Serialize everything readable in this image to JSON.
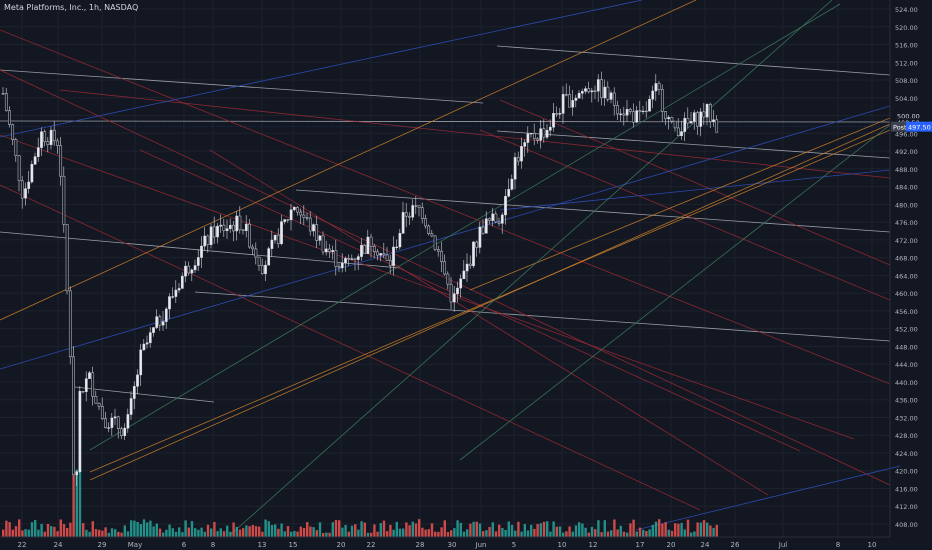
{
  "header": {
    "title": "Meta Platforms, Inc., 1h, NASDAQ"
  },
  "colors": {
    "background": "#131722",
    "up": "#26a69a",
    "down": "#ef5350",
    "wick": "#d1d4dc",
    "axis_text": "#b2b5be",
    "grid": "#1e222d",
    "trendline_white": "#b2b5be",
    "trendline_red": "#9c2a35",
    "trendline_blue": "#2f52c4",
    "trendline_orange": "#d0832a",
    "trendline_green": "#3f7d5e"
  },
  "chart_data": {
    "type": "candlestick",
    "title": "Meta Platforms, Inc., 1h, NASDAQ",
    "ylim": [
      405,
      526
    ],
    "y_ticks": [
      524,
      520,
      516,
      512,
      508,
      504,
      500,
      496,
      492,
      488,
      484,
      480,
      476,
      472,
      468,
      464,
      460,
      456,
      452,
      448,
      444,
      440,
      436,
      432,
      428,
      424,
      420,
      416,
      412,
      408
    ],
    "x_ticks": [
      "22",
      "24",
      "29",
      "May",
      "6",
      "8",
      "13",
      "15",
      "20",
      "22",
      "28",
      "30",
      "Jun",
      "5",
      "10",
      "12",
      "17",
      "20",
      "24",
      "26",
      "Jul",
      "8",
      "10"
    ],
    "current_price": {
      "label": "Post",
      "value": "497.50"
    },
    "price_marks": [
      500.0,
      498.5,
      497.5
    ],
    "keypoints": [
      {
        "x": "Apr 19",
        "y": 505
      },
      {
        "x": "Apr 22",
        "y": 482
      },
      {
        "x": "Apr 23",
        "y": 496
      },
      {
        "x": "Apr 24",
        "y": 494
      },
      {
        "x": "Apr 25",
        "y": 435
      },
      {
        "x": "Apr 26",
        "y": 441
      },
      {
        "x": "Apr 29",
        "y": 432
      },
      {
        "x": "May 1",
        "y": 429
      },
      {
        "x": "May 2",
        "y": 446
      },
      {
        "x": "May 6",
        "y": 465
      },
      {
        "x": "May 8",
        "y": 474
      },
      {
        "x": "May 10",
        "y": 476
      },
      {
        "x": "May 13",
        "y": 466
      },
      {
        "x": "May 15",
        "y": 480
      },
      {
        "x": "May 17",
        "y": 471
      },
      {
        "x": "May 20",
        "y": 466
      },
      {
        "x": "May 22",
        "y": 472
      },
      {
        "x": "May 23",
        "y": 466
      },
      {
        "x": "May 24",
        "y": 478
      },
      {
        "x": "May 28",
        "y": 479
      },
      {
        "x": "May 29",
        "y": 470
      },
      {
        "x": "May 30",
        "y": 458
      },
      {
        "x": "May 31",
        "y": 466
      },
      {
        "x": "Jun 3",
        "y": 475
      },
      {
        "x": "Jun 4",
        "y": 477
      },
      {
        "x": "Jun 5",
        "y": 490
      },
      {
        "x": "Jun 6",
        "y": 495
      },
      {
        "x": "Jun 7",
        "y": 497
      },
      {
        "x": "Jun 10",
        "y": 503
      },
      {
        "x": "Jun 12",
        "y": 507
      },
      {
        "x": "Jun 14",
        "y": 502
      },
      {
        "x": "Jun 17",
        "y": 499
      },
      {
        "x": "Jun 18",
        "y": 506
      },
      {
        "x": "Jun 20",
        "y": 497
      },
      {
        "x": "Jun 21",
        "y": 498
      },
      {
        "x": "Jun 24",
        "y": 501
      },
      {
        "x": "Jun 25",
        "y": 497.5
      }
    ]
  }
}
